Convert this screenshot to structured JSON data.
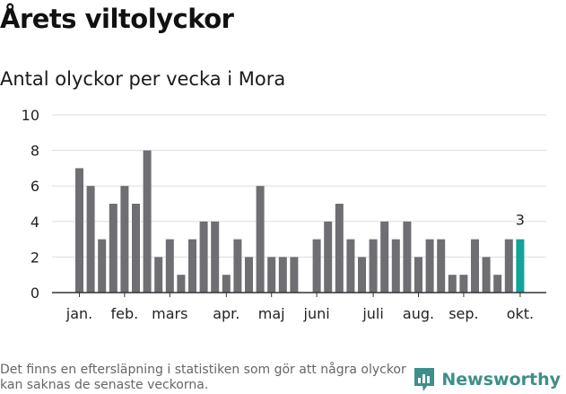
{
  "header": {
    "title": "Årets viltolyckor",
    "subtitle": "Antal olyckor per vecka i Mora"
  },
  "footer": {
    "note": "Det finns en eftersläpning i statistiken som gör att några olyckor kan saknas de senaste veckorna.",
    "brand": "Newsworthy"
  },
  "colors": {
    "bar": "#6e6e73",
    "highlight": "#12a39a",
    "grid": "#dddddd",
    "axis": "#333333",
    "brand": "#3c8f8a"
  },
  "chart_data": {
    "type": "bar",
    "title": "Antal olyckor per vecka i Mora",
    "xlabel": "",
    "ylabel": "",
    "ylim": [
      0,
      10
    ],
    "yticks": [
      0,
      2,
      4,
      6,
      8,
      10
    ],
    "grid": true,
    "x": [
      1,
      2,
      3,
      4,
      5,
      6,
      7,
      8,
      9,
      10,
      11,
      12,
      13,
      14,
      15,
      16,
      17,
      18,
      19,
      20,
      21,
      22,
      23,
      24,
      25,
      26,
      27,
      28,
      29,
      30,
      31,
      32,
      33,
      34,
      35,
      36,
      37,
      38,
      39,
      40
    ],
    "values": [
      7,
      6,
      3,
      5,
      6,
      5,
      8,
      2,
      3,
      1,
      3,
      4,
      4,
      1,
      3,
      2,
      6,
      2,
      2,
      2,
      0,
      3,
      4,
      5,
      3,
      2,
      3,
      4,
      3,
      4,
      2,
      3,
      3,
      1,
      1,
      3,
      2,
      1,
      3,
      3
    ],
    "month_ticks": [
      {
        "label": "jan.",
        "week": 1
      },
      {
        "label": "feb.",
        "week": 5
      },
      {
        "label": "mars",
        "week": 9
      },
      {
        "label": "apr.",
        "week": 14
      },
      {
        "label": "maj",
        "week": 18
      },
      {
        "label": "juni",
        "week": 22
      },
      {
        "label": "juli",
        "week": 27
      },
      {
        "label": "aug.",
        "week": 31
      },
      {
        "label": "sep.",
        "week": 35
      },
      {
        "label": "okt.",
        "week": 40
      }
    ],
    "highlight_index": 39,
    "annotation": {
      "week": 40,
      "text": "3"
    }
  }
}
